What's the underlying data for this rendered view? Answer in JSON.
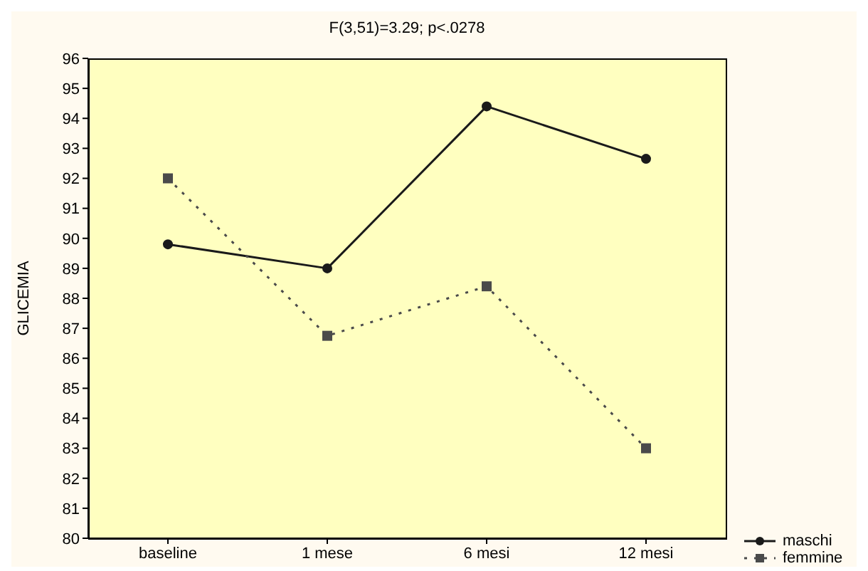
{
  "chart_data": {
    "type": "line",
    "title": "F(3,51)=3.29; p<.0278",
    "ylabel": "GLICEMIA",
    "categories": [
      "baseline",
      "1 mese",
      "6 mesi",
      "12 mesi"
    ],
    "series": [
      {
        "name": "maschi",
        "color": "#1a1a1a",
        "values": [
          89.8,
          89.0,
          94.4,
          92.65
        ],
        "marker": "circle",
        "line_style": "solid"
      },
      {
        "name": "femmine",
        "color": "#4a4a4a",
        "values": [
          92.0,
          86.75,
          88.4,
          83.0
        ],
        "marker": "square",
        "line_style": "dotted"
      }
    ],
    "ylim": [
      80,
      96
    ],
    "yticks": [
      80,
      81,
      82,
      83,
      84,
      85,
      86,
      87,
      88,
      89,
      90,
      91,
      92,
      93,
      94,
      95,
      96
    ],
    "grid": false,
    "legend": "bottom right"
  }
}
